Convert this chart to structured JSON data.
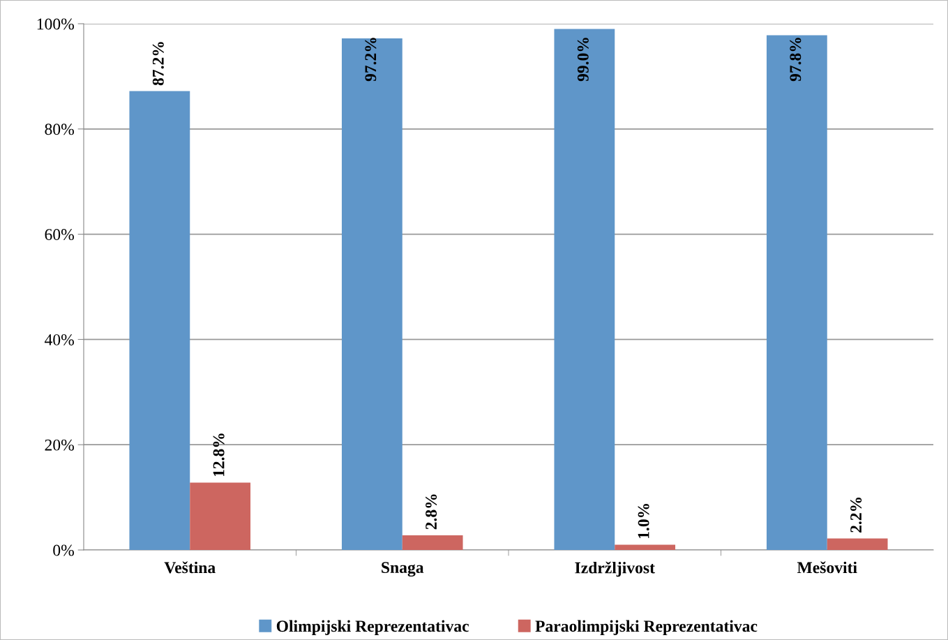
{
  "chart_data": {
    "type": "bar",
    "categories": [
      "Veština",
      "Snaga",
      "Izdržljivost",
      "Mešoviti"
    ],
    "series": [
      {
        "name": "Olimpijski Reprezentativac",
        "color": "#5f96c9",
        "values": [
          87.2,
          97.2,
          99.0,
          97.8
        ],
        "value_labels": [
          "87.2%",
          "97.2%",
          "99.0%",
          "97.8%"
        ]
      },
      {
        "name": "Paraolimpijski Reprezentativac",
        "color": "#cd6660",
        "values": [
          12.8,
          2.8,
          1.0,
          2.2
        ],
        "value_labels": [
          "12.8%",
          "2.8%",
          "1.0%",
          "2.2%"
        ]
      }
    ],
    "ylim": [
      0,
      100
    ],
    "yticks": [
      {
        "value": 0,
        "label": "0%"
      },
      {
        "value": 20,
        "label": "20%"
      },
      {
        "value": 40,
        "label": "40%"
      },
      {
        "value": 60,
        "label": "60%"
      },
      {
        "value": 80,
        "label": "80%"
      },
      {
        "value": 100,
        "label": "100%"
      }
    ],
    "grid": "y",
    "legend": "bottom"
  }
}
